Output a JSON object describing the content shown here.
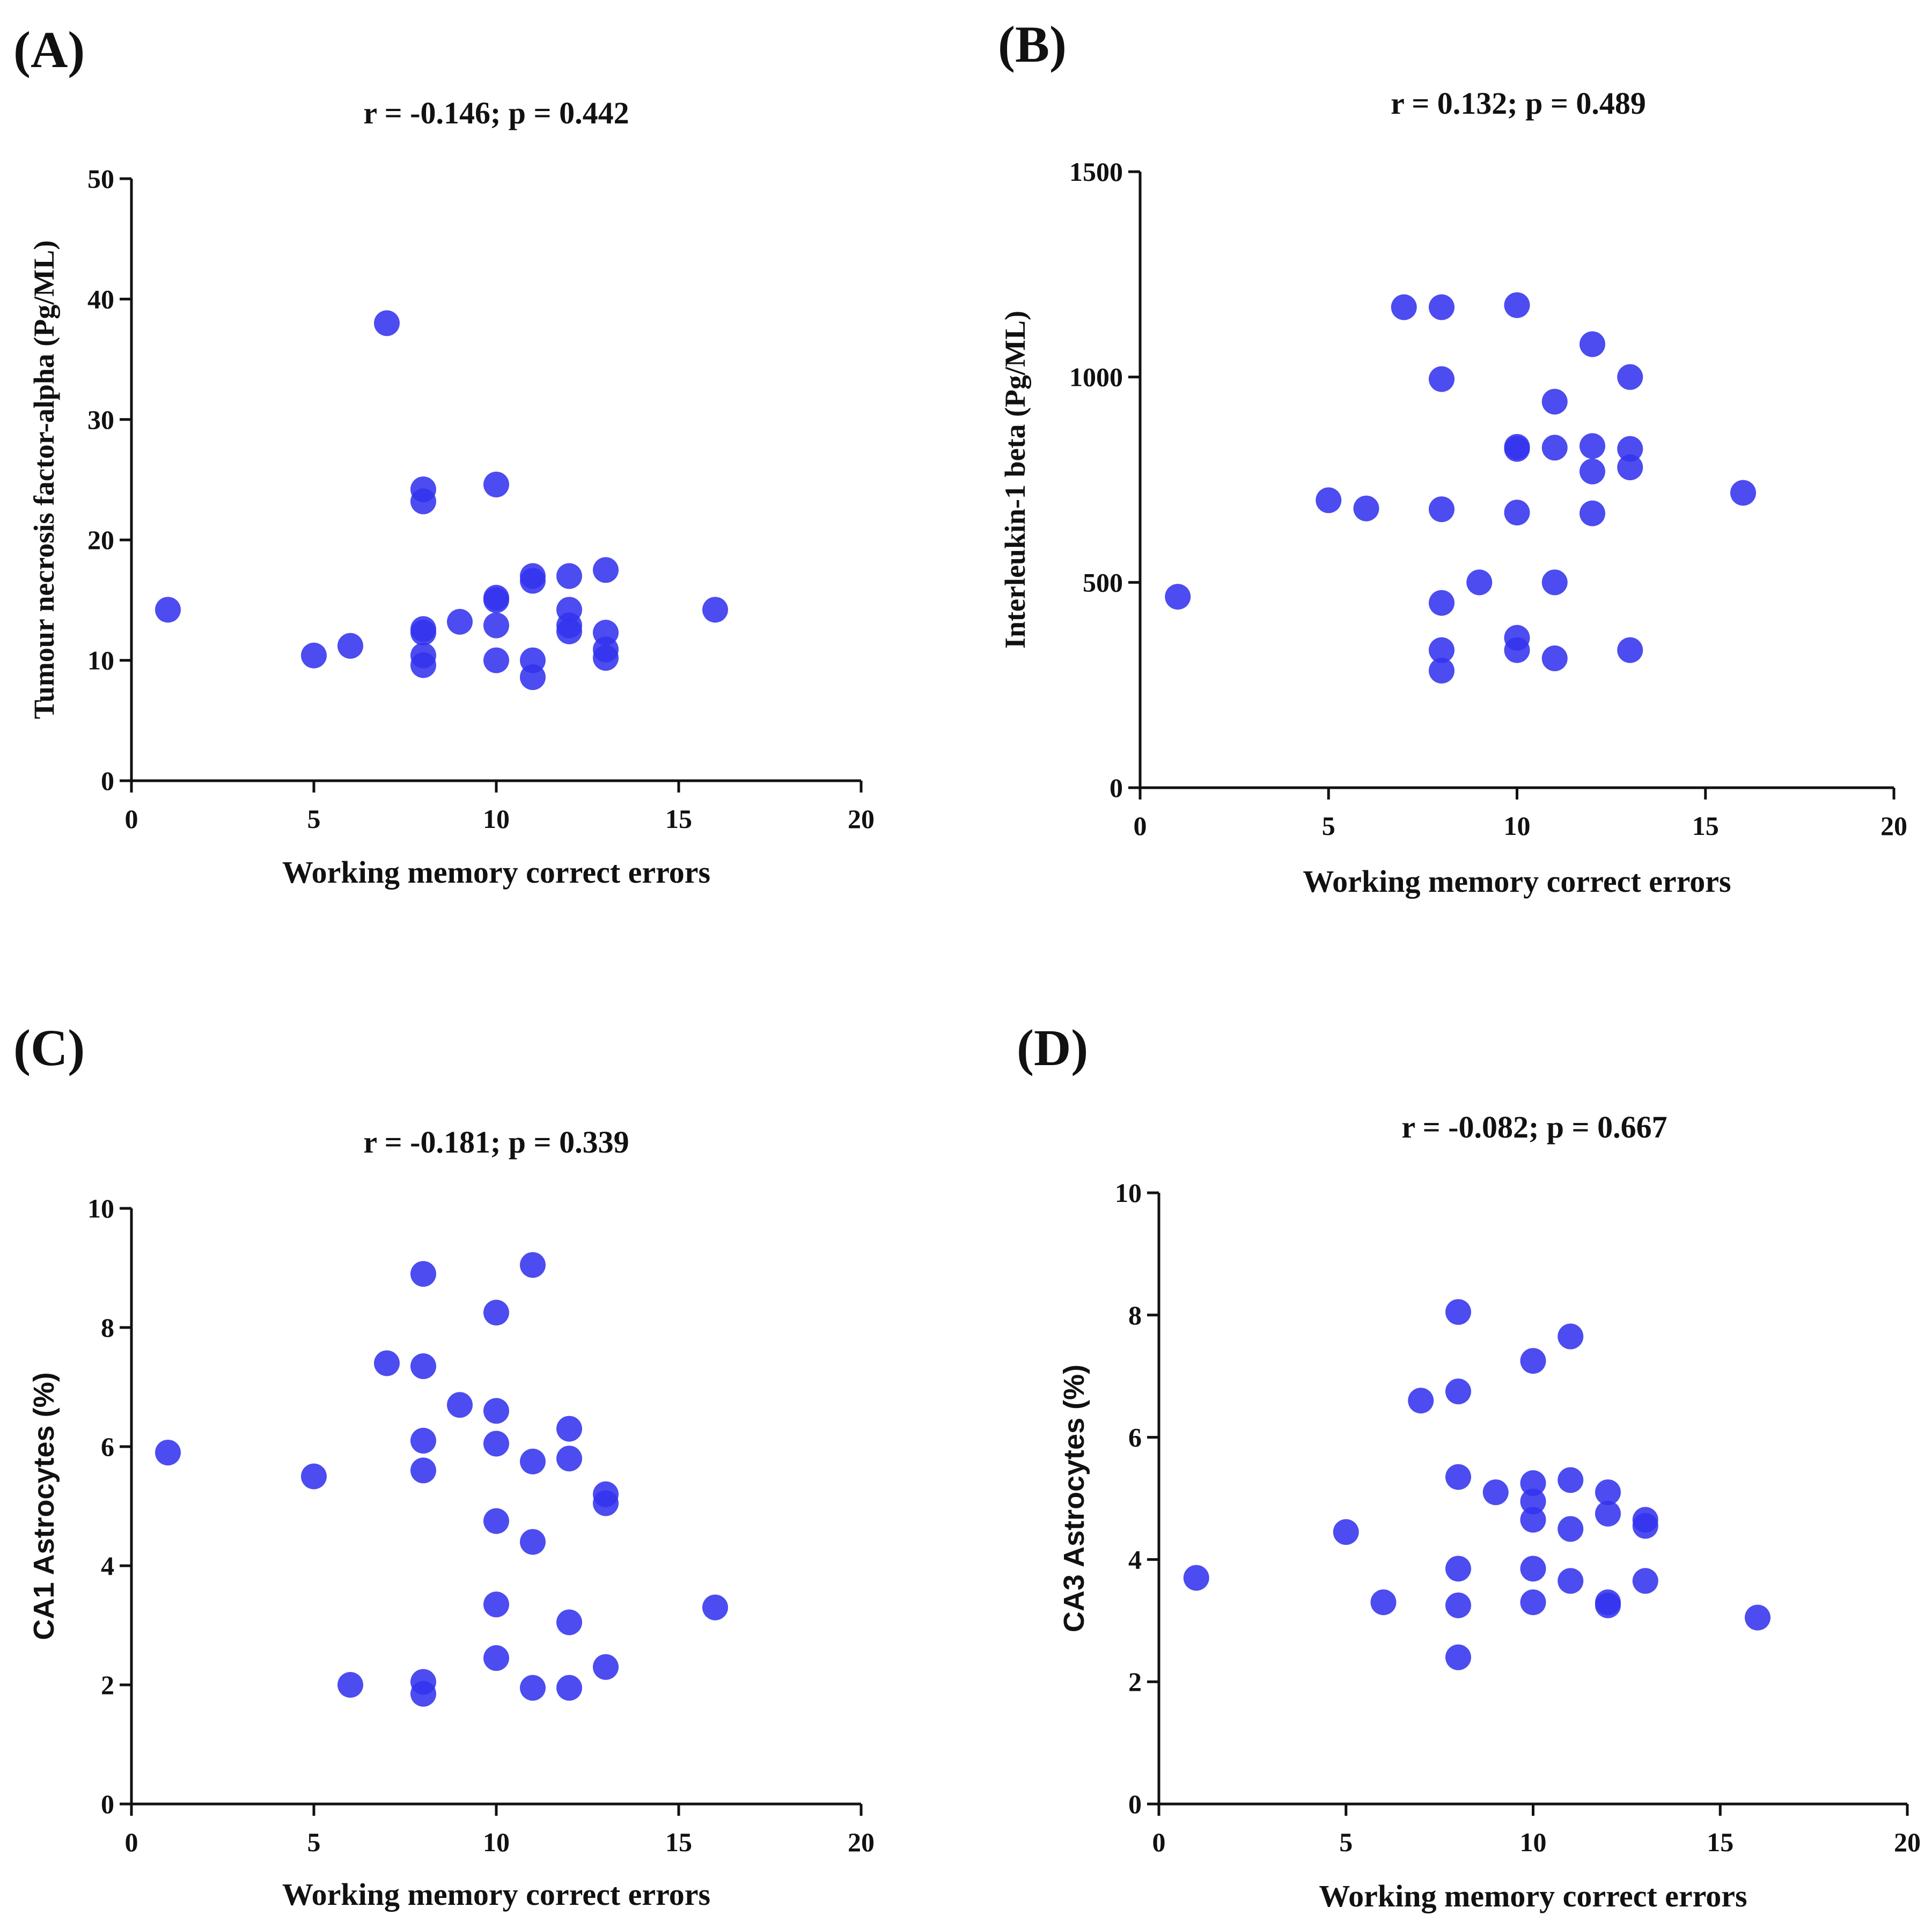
{
  "chart_data": [
    {
      "type": "scatter",
      "panel_label": "(A)",
      "title": "r = -0.146; p = 0.442",
      "xlabel": "Working memory correct errors",
      "ylabel": "Tumour necrosis factor-alpha (Pg/ML)",
      "xlim": [
        0,
        20
      ],
      "ylim": [
        0,
        50
      ],
      "xticks": [
        0,
        5,
        10,
        15,
        20
      ],
      "yticks": [
        0,
        10,
        20,
        30,
        40,
        50
      ],
      "marker_color": "#3333ee",
      "points": [
        {
          "x": 1,
          "y": 14.2
        },
        {
          "x": 5,
          "y": 10.4
        },
        {
          "x": 6,
          "y": 11.2
        },
        {
          "x": 7,
          "y": 38.0
        },
        {
          "x": 8,
          "y": 24.2
        },
        {
          "x": 8,
          "y": 23.2
        },
        {
          "x": 8,
          "y": 12.6
        },
        {
          "x": 8,
          "y": 12.3
        },
        {
          "x": 8,
          "y": 10.4
        },
        {
          "x": 8,
          "y": 9.6
        },
        {
          "x": 9,
          "y": 13.2
        },
        {
          "x": 10,
          "y": 24.6
        },
        {
          "x": 10,
          "y": 15.2
        },
        {
          "x": 10,
          "y": 15.0
        },
        {
          "x": 10,
          "y": 12.9
        },
        {
          "x": 10,
          "y": 10.0
        },
        {
          "x": 11,
          "y": 17.0
        },
        {
          "x": 11,
          "y": 16.6
        },
        {
          "x": 11,
          "y": 10.0
        },
        {
          "x": 11,
          "y": 8.6
        },
        {
          "x": 12,
          "y": 17.0
        },
        {
          "x": 12,
          "y": 14.2
        },
        {
          "x": 12,
          "y": 12.9
        },
        {
          "x": 12,
          "y": 12.4
        },
        {
          "x": 13,
          "y": 17.5
        },
        {
          "x": 13,
          "y": 12.3
        },
        {
          "x": 13,
          "y": 10.9
        },
        {
          "x": 13,
          "y": 10.2
        },
        {
          "x": 16,
          "y": 14.2
        }
      ]
    },
    {
      "type": "scatter",
      "panel_label": "(B)",
      "title": "r = 0.132; p = 0.489",
      "xlabel": "Working memory correct errors",
      "ylabel": "Interleukin-1 beta (Pg/ML)",
      "xlim": [
        0,
        20
      ],
      "ylim": [
        0,
        1500
      ],
      "xticks": [
        0,
        5,
        10,
        15,
        20
      ],
      "yticks": [
        0,
        500,
        1000,
        1500
      ],
      "marker_color": "#3333ee",
      "points": [
        {
          "x": 1,
          "y": 465
        },
        {
          "x": 5,
          "y": 700
        },
        {
          "x": 6,
          "y": 680
        },
        {
          "x": 7,
          "y": 1170
        },
        {
          "x": 8,
          "y": 1170
        },
        {
          "x": 8,
          "y": 995
        },
        {
          "x": 8,
          "y": 678
        },
        {
          "x": 8,
          "y": 450
        },
        {
          "x": 8,
          "y": 335
        },
        {
          "x": 8,
          "y": 285
        },
        {
          "x": 9,
          "y": 500
        },
        {
          "x": 10,
          "y": 1175
        },
        {
          "x": 10,
          "y": 830
        },
        {
          "x": 10,
          "y": 825
        },
        {
          "x": 10,
          "y": 670
        },
        {
          "x": 10,
          "y": 365
        },
        {
          "x": 10,
          "y": 335
        },
        {
          "x": 11,
          "y": 940
        },
        {
          "x": 11,
          "y": 828
        },
        {
          "x": 11,
          "y": 500
        },
        {
          "x": 11,
          "y": 315
        },
        {
          "x": 12,
          "y": 1080
        },
        {
          "x": 12,
          "y": 832
        },
        {
          "x": 12,
          "y": 770
        },
        {
          "x": 12,
          "y": 668
        },
        {
          "x": 13,
          "y": 1000
        },
        {
          "x": 13,
          "y": 825
        },
        {
          "x": 13,
          "y": 780
        },
        {
          "x": 13,
          "y": 335
        },
        {
          "x": 16,
          "y": 718
        }
      ]
    },
    {
      "type": "scatter",
      "panel_label": "(C)",
      "title": "r = -0.181; p = 0.339",
      "xlabel": "Working memory correct errors",
      "ylabel": "CA1 Astrocytes (%)",
      "xlim": [
        0,
        20
      ],
      "ylim": [
        0,
        10
      ],
      "xticks": [
        0,
        5,
        10,
        15,
        20
      ],
      "yticks": [
        0,
        2,
        4,
        6,
        8,
        10
      ],
      "marker_color": "#3333ee",
      "points": [
        {
          "x": 1,
          "y": 5.9
        },
        {
          "x": 5,
          "y": 5.5
        },
        {
          "x": 6,
          "y": 2.0
        },
        {
          "x": 7,
          "y": 7.4
        },
        {
          "x": 8,
          "y": 8.9
        },
        {
          "x": 8,
          "y": 7.35
        },
        {
          "x": 8,
          "y": 6.1
        },
        {
          "x": 8,
          "y": 5.6
        },
        {
          "x": 8,
          "y": 2.05
        },
        {
          "x": 8,
          "y": 1.85
        },
        {
          "x": 9,
          "y": 6.7
        },
        {
          "x": 10,
          "y": 8.25
        },
        {
          "x": 10,
          "y": 6.6
        },
        {
          "x": 10,
          "y": 6.05
        },
        {
          "x": 10,
          "y": 4.75
        },
        {
          "x": 10,
          "y": 3.35
        },
        {
          "x": 10,
          "y": 2.45
        },
        {
          "x": 11,
          "y": 9.05
        },
        {
          "x": 11,
          "y": 5.75
        },
        {
          "x": 11,
          "y": 4.4
        },
        {
          "x": 11,
          "y": 1.95
        },
        {
          "x": 12,
          "y": 6.3
        },
        {
          "x": 12,
          "y": 5.8
        },
        {
          "x": 12,
          "y": 3.05
        },
        {
          "x": 12,
          "y": 1.95
        },
        {
          "x": 13,
          "y": 5.2
        },
        {
          "x": 13,
          "y": 5.05
        },
        {
          "x": 13,
          "y": 2.3
        },
        {
          "x": 16,
          "y": 3.3
        }
      ]
    },
    {
      "type": "scatter",
      "panel_label": "(D)",
      "title": "r = -0.082; p = 0.667",
      "xlabel": "Working memory correct errors",
      "ylabel": "CA3 Astrocytes (%)",
      "xlim": [
        0,
        20
      ],
      "ylim": [
        0,
        10
      ],
      "xticks": [
        0,
        5,
        10,
        15,
        20
      ],
      "yticks": [
        0,
        2,
        4,
        6,
        8,
        10
      ],
      "marker_color": "#3333ee",
      "points": [
        {
          "x": 1,
          "y": 3.7
        },
        {
          "x": 5,
          "y": 4.45
        },
        {
          "x": 6,
          "y": 3.3
        },
        {
          "x": 7,
          "y": 6.6
        },
        {
          "x": 8,
          "y": 8.05
        },
        {
          "x": 8,
          "y": 6.75
        },
        {
          "x": 8,
          "y": 5.35
        },
        {
          "x": 8,
          "y": 3.85
        },
        {
          "x": 8,
          "y": 3.25
        },
        {
          "x": 8,
          "y": 2.4
        },
        {
          "x": 9,
          "y": 5.1
        },
        {
          "x": 10,
          "y": 7.25
        },
        {
          "x": 10,
          "y": 5.25
        },
        {
          "x": 10,
          "y": 4.95
        },
        {
          "x": 10,
          "y": 4.65
        },
        {
          "x": 10,
          "y": 3.85
        },
        {
          "x": 10,
          "y": 3.3
        },
        {
          "x": 11,
          "y": 7.65
        },
        {
          "x": 11,
          "y": 5.3
        },
        {
          "x": 11,
          "y": 4.5
        },
        {
          "x": 11,
          "y": 3.65
        },
        {
          "x": 12,
          "y": 5.1
        },
        {
          "x": 12,
          "y": 4.75
        },
        {
          "x": 12,
          "y": 3.3
        },
        {
          "x": 12,
          "y": 3.25
        },
        {
          "x": 13,
          "y": 4.65
        },
        {
          "x": 13,
          "y": 4.55
        },
        {
          "x": 13,
          "y": 3.65
        },
        {
          "x": 16,
          "y": 3.05
        }
      ]
    }
  ]
}
